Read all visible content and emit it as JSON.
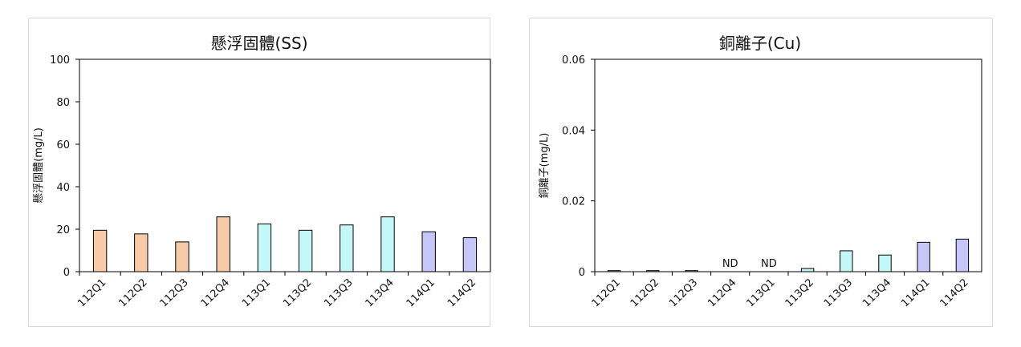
{
  "chart_data": [
    {
      "type": "bar",
      "title": "懸浮固體(SS)",
      "xlabel": "",
      "ylabel": "懸浮固體(mg/L)",
      "categories": [
        "112Q1",
        "112Q2",
        "112Q3",
        "112Q4",
        "113Q1",
        "113Q2",
        "113Q3",
        "113Q4",
        "114Q1",
        "114Q2"
      ],
      "values": [
        19.5,
        17.8,
        14.0,
        25.8,
        22.5,
        19.5,
        22.0,
        25.8,
        18.8,
        16.0
      ],
      "labels": [
        "",
        "",
        "",
        "",
        "",
        "",
        "",
        "",
        "",
        ""
      ],
      "colors": [
        "#f7cba8",
        "#f7cba8",
        "#f7cba8",
        "#f7cba8",
        "#c4f8f8",
        "#c4f8f8",
        "#c4f8f8",
        "#c4f8f8",
        "#c6c6f9",
        "#c6c6f9"
      ],
      "ylim": [
        0,
        100
      ],
      "yticks": [
        0,
        20,
        40,
        60,
        80,
        100
      ],
      "ytick_labels": [
        "0",
        "20",
        "40",
        "60",
        "80",
        "100"
      ],
      "grid": false
    },
    {
      "type": "bar",
      "title": "銅離子(Cu)",
      "xlabel": "",
      "ylabel": "銅離子(mg/L)",
      "categories": [
        "112Q1",
        "112Q2",
        "112Q3",
        "112Q4",
        "113Q1",
        "113Q2",
        "113Q3",
        "113Q4",
        "114Q1",
        "114Q2"
      ],
      "values": [
        0.0003,
        0.0003,
        0.0003,
        0,
        0,
        0.0009,
        0.0059,
        0.0047,
        0.0083,
        0.0092
      ],
      "labels": [
        "",
        "",
        "",
        "ND",
        "ND",
        "",
        "",
        "",
        "",
        ""
      ],
      "colors": [
        "#f7cba8",
        "#f7cba8",
        "#f7cba8",
        "#f7cba8",
        "#c4f8f8",
        "#c4f8f8",
        "#c4f8f8",
        "#c4f8f8",
        "#c6c6f9",
        "#c6c6f9"
      ],
      "ylim": [
        0,
        0.06
      ],
      "yticks": [
        0,
        0.02,
        0.04,
        0.06
      ],
      "ytick_labels": [
        "0",
        "0.02",
        "0.04",
        "0.06"
      ],
      "grid": false
    }
  ]
}
